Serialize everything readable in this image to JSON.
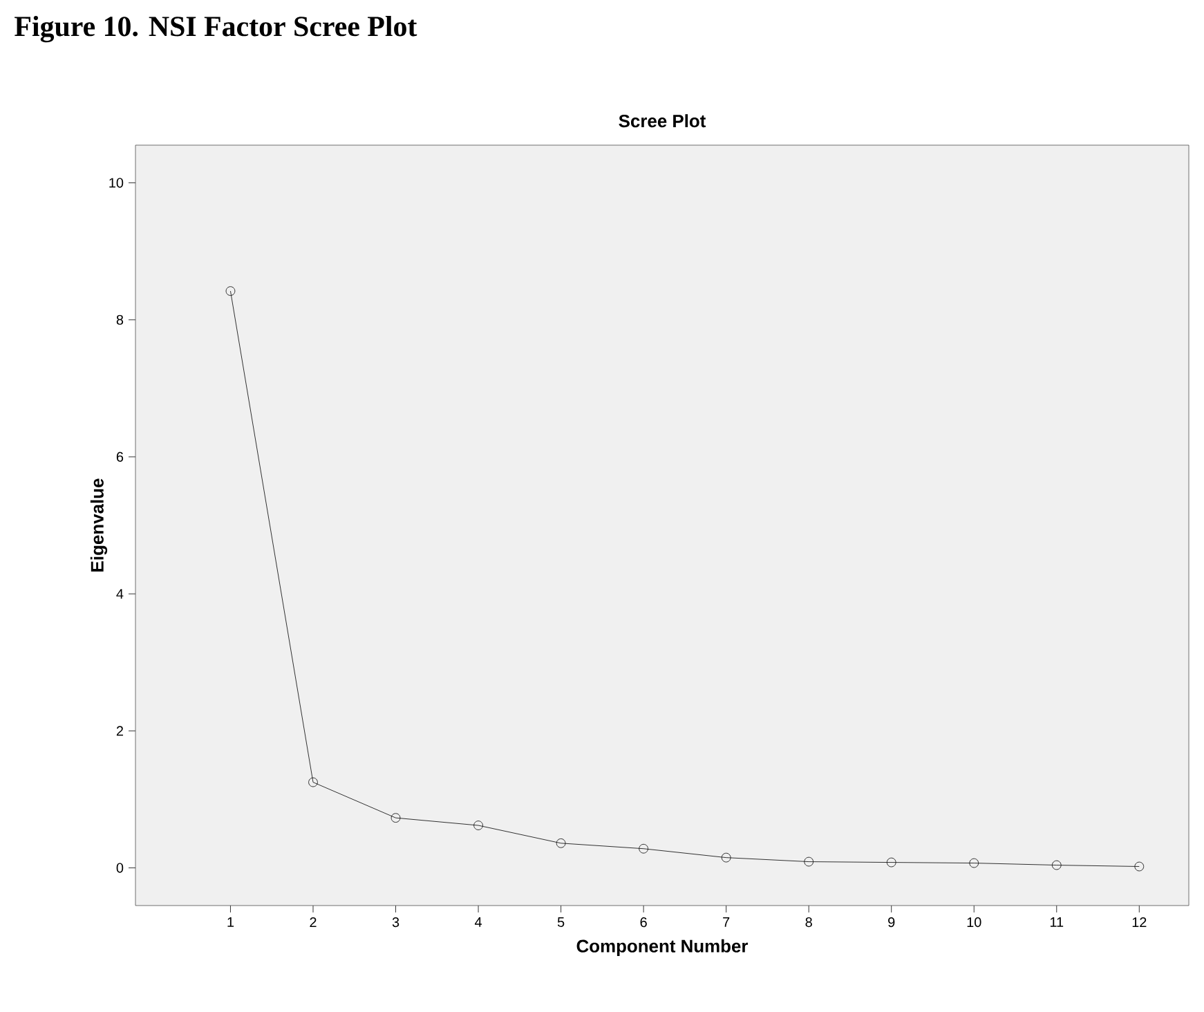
{
  "chart_data": {
    "type": "line",
    "title": "Figure 10.  NSI Factor Scree Plot",
    "subtitle": "Scree Plot",
    "xlabel": "Component Number",
    "ylabel": "Eigenvalue",
    "x": [
      1,
      2,
      3,
      4,
      5,
      6,
      7,
      8,
      9,
      10,
      11,
      12
    ],
    "series": [
      {
        "color": "#000000",
        "values": [
          8.42,
          1.25,
          0.73,
          0.62,
          0.36,
          0.28,
          0.15,
          0.09,
          0.08,
          0.07,
          0.04,
          0.02
        ]
      }
    ],
    "xlim": [
      -0.15,
      12.6
    ],
    "ylim": [
      -0.55,
      10.55
    ],
    "xticks": [
      1,
      2,
      3,
      4,
      5,
      6,
      7,
      8,
      9,
      10,
      11,
      12
    ],
    "yticks": [
      0,
      2,
      4,
      6,
      8,
      10
    ],
    "marker": "circle",
    "line_style": "solid",
    "grid": false
  }
}
